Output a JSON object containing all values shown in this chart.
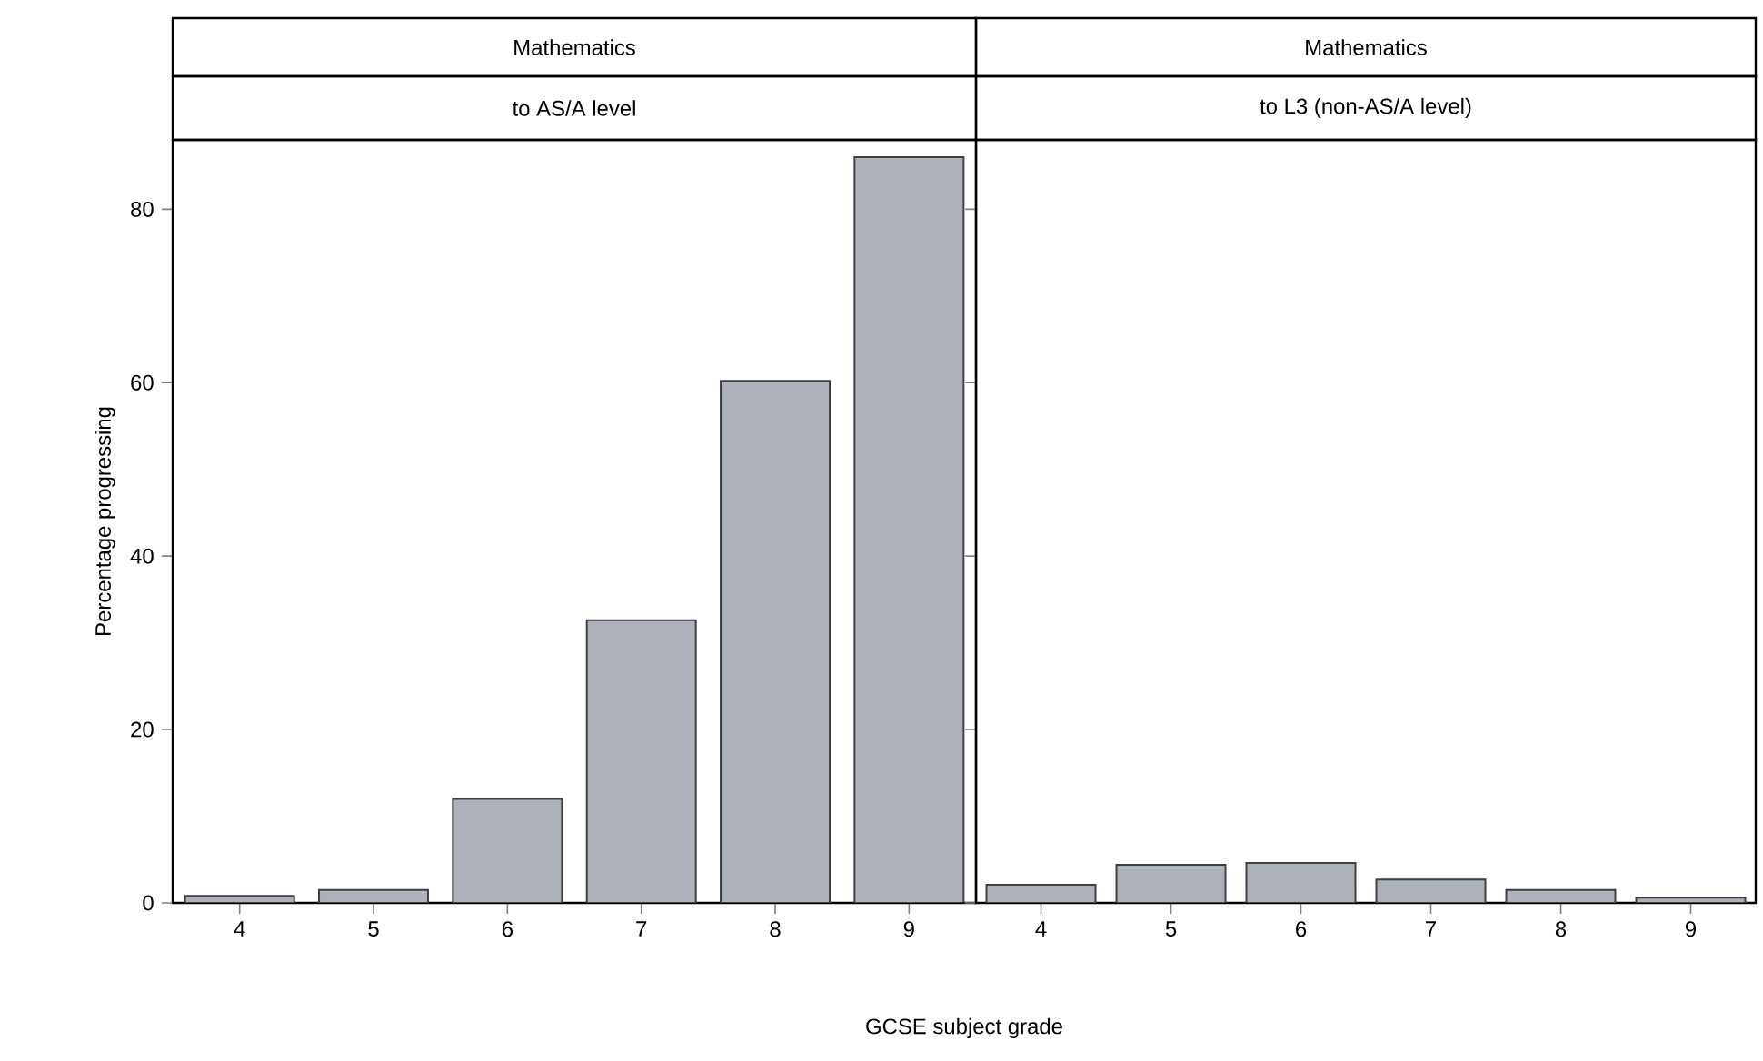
{
  "chart_data": [
    {
      "type": "bar",
      "title": "Mathematics",
      "subtitle": "to AS/A level",
      "xlabel": "GCSE subject grade",
      "ylabel": "Percentage progressing",
      "categories": [
        "4",
        "5",
        "6",
        "7",
        "8",
        "9"
      ],
      "values": [
        0.8,
        1.5,
        12,
        32.6,
        60.2,
        86
      ],
      "color": "#adb1ba",
      "ylim": [
        0,
        88
      ],
      "yticks": [
        0,
        20,
        40,
        60,
        80
      ],
      "grid": false
    },
    {
      "type": "bar",
      "title": "Mathematics",
      "subtitle": "to L3 (non-AS/A level)",
      "categories": [
        "4",
        "5",
        "6",
        "7",
        "8",
        "9"
      ],
      "values": [
        2.1,
        4.4,
        4.6,
        2.7,
        1.5,
        0.6
      ],
      "color": "#adb1ba",
      "ylim": [
        0,
        88
      ],
      "yticks": [
        0,
        20,
        40,
        60,
        80
      ],
      "grid": false,
      "tick_labels": "x"
    }
  ]
}
